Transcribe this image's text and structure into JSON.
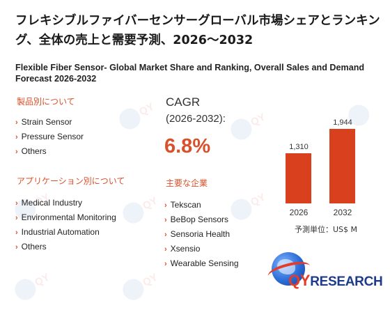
{
  "title_jp": "フレキシブルファイバーセンサーグローバル市場シェアとランキング、全体の売上と需要予測、2026～2032",
  "title_en": "Flexible Fiber Sensor- Global Market Share and Ranking, Overall Sales and Demand Forecast 2026-2032",
  "product_section": {
    "heading": "製品別について",
    "items": [
      "Strain Sensor",
      "Pressure Sensor",
      "Others"
    ]
  },
  "application_section": {
    "heading": "アプリケーション別について",
    "items": [
      "Medical Industry",
      "Environmental Monitoring",
      "Industrial Automation",
      "Others"
    ]
  },
  "cagr": {
    "label": "CAGR",
    "range": "(2026-2032):",
    "value": "6.8%"
  },
  "companies_section": {
    "heading": "主要な企業",
    "items": [
      "Tekscan",
      "BeBop Sensors",
      "Sensoria Health",
      "Xsensio",
      "Wearable Sensing"
    ]
  },
  "chart_data": {
    "type": "bar",
    "categories": [
      "2026",
      "2032"
    ],
    "values": [
      1310,
      1944
    ],
    "value_labels": [
      "1,310",
      "1,944"
    ],
    "unit_note": "予測単位：US$ M",
    "ylim": [
      0,
      2000
    ],
    "bar_color": "#d9411e"
  },
  "logo": {
    "text_qy": "QY",
    "text_research": "RESEARCH"
  },
  "colors": {
    "accent": "#d9502b",
    "bar": "#d9411e",
    "logo_blue": "#1d3b8a",
    "logo_red": "#e23c2a"
  },
  "arrow_icon": "›"
}
